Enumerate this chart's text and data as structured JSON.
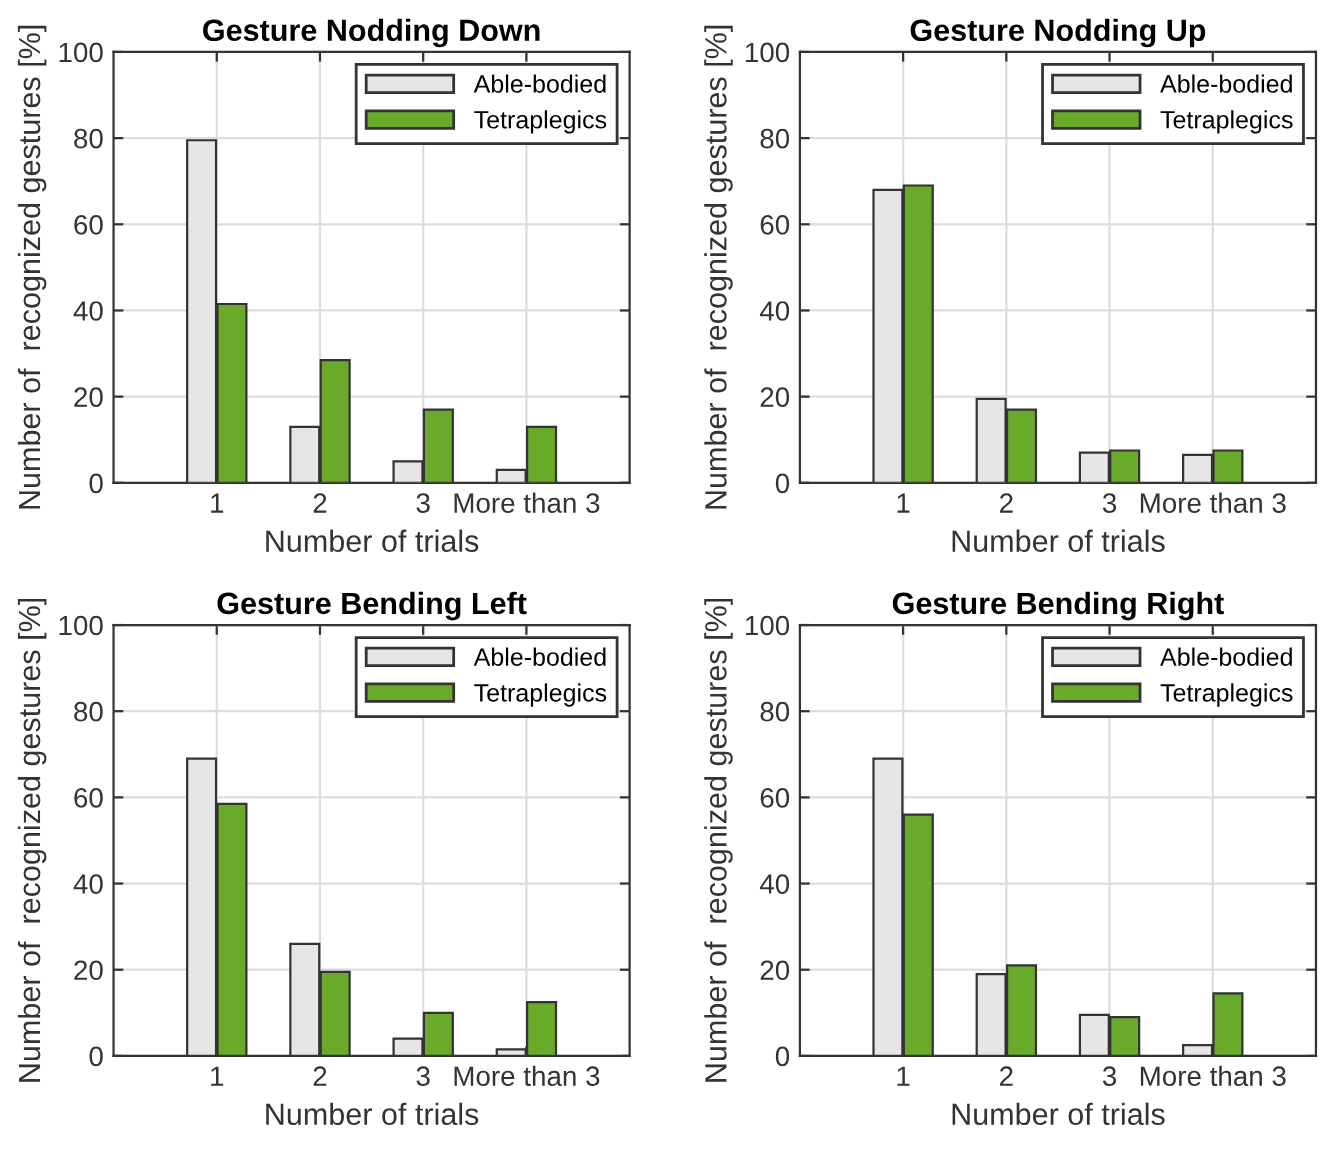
{
  "chart_data": [
    {
      "type": "bar",
      "title": "Gesture Nodding Down",
      "xlabel": "Number of trials",
      "ylabel": "Number of  recognized gestures [%]",
      "categories": [
        "1",
        "2",
        "3",
        "More than 3"
      ],
      "ylim": [
        0,
        100
      ],
      "yticks": [
        0,
        20,
        40,
        60,
        80,
        100
      ],
      "grid": true,
      "legend": "top right",
      "series": [
        {
          "name": "Able-bodied",
          "color": "#e6e6e6",
          "values": [
            79.5,
            13,
            5,
            3
          ]
        },
        {
          "name": "Tetraplegics",
          "color": "#6aaa2a",
          "values": [
            41.5,
            28.5,
            17,
            13
          ]
        }
      ]
    },
    {
      "type": "bar",
      "title": "Gesture Nodding Up",
      "xlabel": "Number of trials",
      "ylabel": "Number of  recognized gestures [%]",
      "categories": [
        "1",
        "2",
        "3",
        "More than 3"
      ],
      "ylim": [
        0,
        100
      ],
      "yticks": [
        0,
        20,
        40,
        60,
        80,
        100
      ],
      "grid": true,
      "legend": "top right",
      "series": [
        {
          "name": "Able-bodied",
          "color": "#e6e6e6",
          "values": [
            68,
            19.5,
            7,
            6.5
          ]
        },
        {
          "name": "Tetraplegics",
          "color": "#6aaa2a",
          "values": [
            69,
            17,
            7.5,
            7.5
          ]
        }
      ]
    },
    {
      "type": "bar",
      "title": "Gesture Bending Left",
      "xlabel": "Number of trials",
      "ylabel": "Number of  recognized gestures [%]",
      "categories": [
        "1",
        "2",
        "3",
        "More than 3"
      ],
      "ylim": [
        0,
        100
      ],
      "yticks": [
        0,
        20,
        40,
        60,
        80,
        100
      ],
      "grid": true,
      "legend": "top right",
      "series": [
        {
          "name": "Able-bodied",
          "color": "#e6e6e6",
          "values": [
            69,
            26,
            4,
            1.5
          ]
        },
        {
          "name": "Tetraplegics",
          "color": "#6aaa2a",
          "values": [
            58.5,
            19.5,
            10,
            12.5
          ]
        }
      ]
    },
    {
      "type": "bar",
      "title": "Gesture Bending Right",
      "xlabel": "Number of trials",
      "ylabel": "Number of  recognized gestures [%]",
      "categories": [
        "1",
        "2",
        "3",
        "More than 3"
      ],
      "ylim": [
        0,
        100
      ],
      "yticks": [
        0,
        20,
        40,
        60,
        80,
        100
      ],
      "grid": true,
      "legend": "top right",
      "series": [
        {
          "name": "Able-bodied",
          "color": "#e6e6e6",
          "values": [
            69,
            19,
            9.5,
            2.5
          ]
        },
        {
          "name": "Tetraplegics",
          "color": "#6aaa2a",
          "values": [
            56,
            21,
            9,
            14.5
          ]
        }
      ]
    }
  ]
}
